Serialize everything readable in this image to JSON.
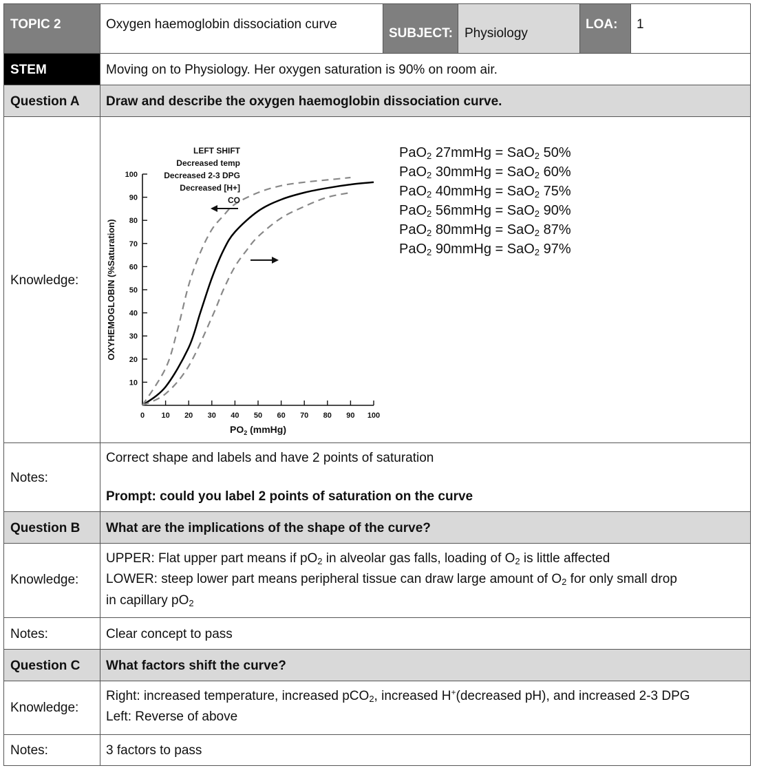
{
  "header": {
    "topic_label": "TOPIC 2",
    "topic_value": "Oxygen haemoglobin dissociation curve",
    "subject_label": "SUBJECT:",
    "subject_value": "Physiology",
    "loa_label": "LOA:",
    "loa_value": "1"
  },
  "stem": {
    "label": "STEM",
    "text": "Moving on to Physiology. Her oxygen saturation is 90% on room air."
  },
  "question_a": {
    "label": "Question A",
    "text": "Draw and describe the oxygen haemoglobin dissociation curve.",
    "knowledge_label": "Knowledge:",
    "sat_points": [
      {
        "pa": "PaO",
        "pa_rest": " 27mmHg = SaO",
        "val": " 50%"
      },
      {
        "pa": "PaO",
        "pa_rest": " 30mmHg = SaO",
        "val": " 60%"
      },
      {
        "pa": "PaO",
        "pa_rest": " 40mmHg = SaO",
        "val": " 75%"
      },
      {
        "pa": "PaO",
        "pa_rest": " 56mmHg = SaO",
        "val": " 90%"
      },
      {
        "pa": "PaO",
        "pa_rest": " 80mmHg = SaO",
        "val": " 87%"
      },
      {
        "pa": "PaO",
        "pa_rest": " 90mmHg = SaO",
        "val": " 97%"
      }
    ],
    "notes_label": "Notes:",
    "notes_text": "Correct shape and labels and have 2 points of saturation",
    "notes_prompt": "Prompt: could you label 2 points of saturation on the curve"
  },
  "chart_data": {
    "type": "line",
    "xlabel_main": "PO",
    "xlabel_sub": "2",
    "xlabel_unit": " (mmHg)",
    "ylabel": "OXYHEMOGLOBIN (%Saturation)",
    "xlim": [
      0,
      100
    ],
    "ylim": [
      0,
      100
    ],
    "x_ticks": [
      0,
      10,
      20,
      30,
      40,
      50,
      60,
      70,
      80,
      90,
      100
    ],
    "y_ticks": [
      10,
      20,
      30,
      40,
      50,
      60,
      70,
      80,
      90,
      100
    ],
    "annotation_lines": [
      "LEFT SHIFT",
      "Decreased temp",
      "Decreased 2-3 DPG",
      "Decreased [H+]",
      "CO"
    ],
    "series": [
      {
        "style": "solid",
        "x": [
          0,
          10,
          20,
          25,
          30,
          35,
          40,
          50,
          60,
          70,
          80,
          90,
          100
        ],
        "y": [
          0,
          8,
          25,
          40,
          55,
          67,
          75,
          84,
          89,
          92,
          94,
          95.5,
          96.5
        ]
      },
      {
        "style": "dashed",
        "x": [
          0,
          10,
          15,
          20,
          25,
          30,
          35,
          40,
          50,
          60,
          70,
          80,
          90
        ],
        "y": [
          0,
          16,
          32,
          52,
          66,
          76,
          82,
          87,
          92,
          95,
          96.5,
          97.5,
          98.5
        ]
      },
      {
        "style": "dashed",
        "x": [
          0,
          10,
          20,
          30,
          35,
          40,
          45,
          50,
          60,
          70,
          80,
          90
        ],
        "y": [
          0,
          5,
          17,
          38,
          50,
          60,
          67,
          73,
          81,
          86,
          90,
          92
        ]
      }
    ]
  },
  "question_b": {
    "label": "Question B",
    "text": "What are the implications of the shape of the curve?",
    "knowledge_label": "Knowledge:",
    "upper": {
      "a": "UPPER: Flat upper part means if pO",
      "b": " in alveolar gas falls, loading of O",
      "c": " is little affected"
    },
    "lower": {
      "a": "LOWER: steep lower part means peripheral tissue can draw large amount of O",
      "b": " for only small drop",
      "c": "in capillary pO"
    },
    "notes_label": "Notes:",
    "notes_text": "Clear concept to pass"
  },
  "question_c": {
    "label": "Question C",
    "text": "What factors shift the curve?",
    "knowledge_label": "Knowledge:",
    "right": {
      "a": "Right: increased temperature, increased pCO",
      "b": ", increased H",
      "c": "(decreased pH), and increased 2-3 DPG"
    },
    "left": "Left: Reverse of above",
    "notes_label": "Notes:",
    "notes_text": "3 factors to pass"
  },
  "subscript_2": "2",
  "superscript_plus": "+"
}
